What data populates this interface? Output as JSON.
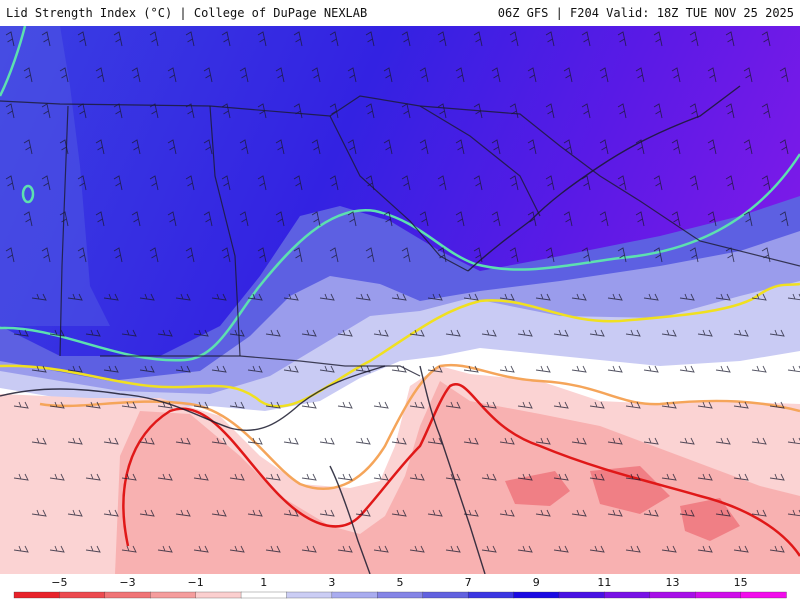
{
  "header": {
    "title": "Lid Strength Index (°C) | College of DuPage NEXLAB",
    "run_info": "06Z GFS | F204 Valid: 18Z TUE NOV 25 2025"
  },
  "legend": {
    "tick_labels": [
      "−5",
      "−3",
      "−1",
      "1",
      "3",
      "5",
      "7",
      "9",
      "11",
      "13",
      "15"
    ],
    "bins": [
      "#e8222a",
      "#ec4a4f",
      "#f07476",
      "#f59d9d",
      "#fbcfcf",
      "#ffffff",
      "#cbcdf4",
      "#a9acef",
      "#8585e6",
      "#6262df",
      "#3b37e2",
      "#1b0ae3",
      "#4912e4",
      "#7812e6",
      "#a70fe8",
      "#cf0dea",
      "#f20cec"
    ]
  },
  "colors": {
    "strong_warm": "#f07f85",
    "warm": "#f7b4b4",
    "light_warm": "#fcd8d8",
    "neutral": "#ffffff",
    "light_cool": "#c5c8f3",
    "cool": "#8b8ee8",
    "deep_cool": "#3e33e0",
    "purple": "#6a1ee6",
    "contour_red": "#e01818",
    "contour_orange": "#f5a55a",
    "contour_yellow": "#f0e020",
    "contour_aqua": "#5de0b0"
  }
}
